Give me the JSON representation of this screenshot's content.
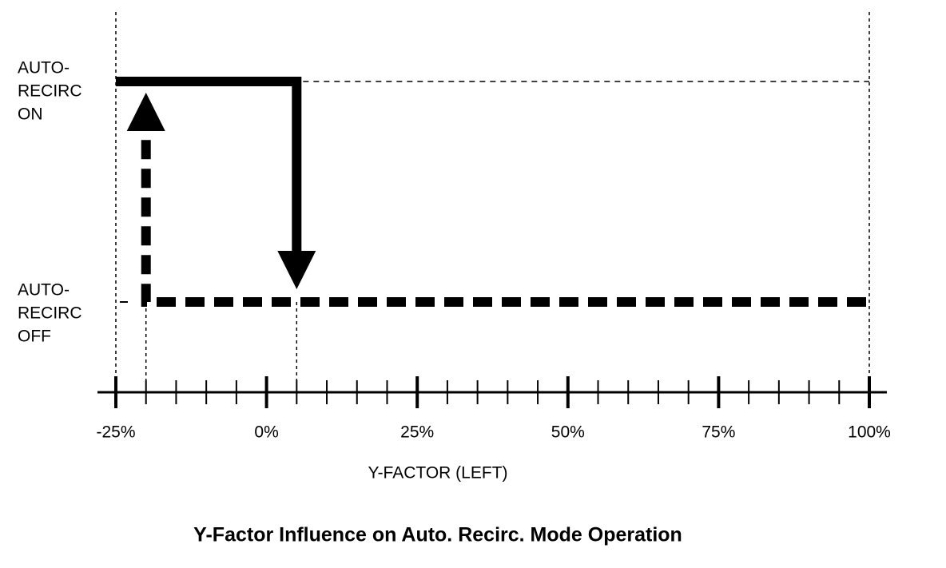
{
  "chart_data": {
    "type": "hysteresis",
    "title": "Y-Factor Influence on Auto. Recirc. Mode Operation",
    "x_label": "Y-FACTOR (LEFT)",
    "state_labels": {
      "on": [
        "AUTO-",
        "RECIRC",
        "ON"
      ],
      "off": [
        "AUTO-",
        "RECIRC",
        "OFF"
      ]
    },
    "xlim": [
      -25,
      100
    ],
    "xticks": [
      {
        "value": -25,
        "label": "-25%"
      },
      {
        "value": 0,
        "label": "0%"
      },
      {
        "value": 25,
        "label": "25%"
      },
      {
        "value": 50,
        "label": "50%"
      },
      {
        "value": 75,
        "label": "75%"
      },
      {
        "value": 100,
        "label": "100%"
      }
    ],
    "switch_on_x": -20,
    "switch_off_x": 5
  }
}
